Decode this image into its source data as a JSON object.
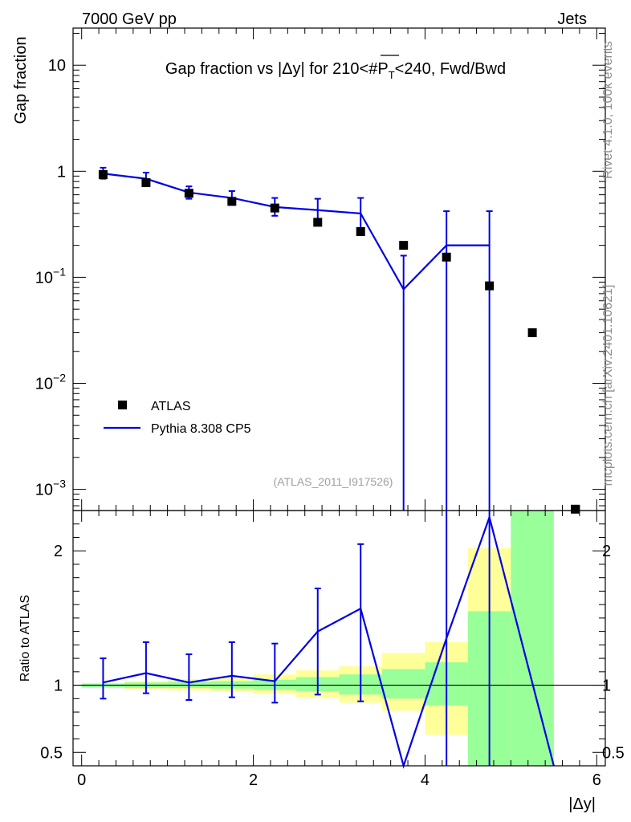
{
  "header": {
    "left": "7000 GeV pp",
    "right": "Jets"
  },
  "side_labels": {
    "rivet": "Rivet 4.1.0,  100k events",
    "mcplots": "mcplots.cern.ch [arXiv:2401.10621]"
  },
  "chart_data": {
    "type": "scatter",
    "title_parts": [
      "Gap fraction vs |",
      "Δ",
      "y| for 210<#",
      "P",
      "T",
      "<240, Fwd/Bwd"
    ],
    "analysis_label": "(ATLAS_2011_I917526)",
    "xlabel": "|Δy|",
    "ylabel_main": "Gap fraction",
    "ylabel_ratio": "Ratio to ATLAS",
    "xlim": [
      -0.1,
      6.1
    ],
    "ylim_main_log10": [
      -3.2,
      1.35
    ],
    "ylim_ratio": [
      0.4,
      2.3
    ],
    "x_ticks": [
      0,
      2,
      4,
      6
    ],
    "x_tick_labels": [
      "0",
      "2",
      "4",
      "6"
    ],
    "y_ticks_main": [
      {
        "base": "10",
        "exp": "",
        "log": 1
      },
      {
        "base": "1",
        "exp": "",
        "log": 0
      },
      {
        "base": "10",
        "exp": "−1",
        "log": -1
      },
      {
        "base": "10",
        "exp": "−2",
        "log": -2
      },
      {
        "base": "10",
        "exp": "−3",
        "log": -3
      }
    ],
    "y_ticks_ratio": [
      {
        "label": "0.5",
        "value": 0.5
      },
      {
        "label": "1",
        "value": 1
      },
      {
        "label": "2",
        "value": 2
      }
    ],
    "legend": {
      "placement": "lower-left",
      "data_label": "ATLAS",
      "mc_label": "Pythia 8.308 CP5"
    },
    "bins": [
      0,
      0.5,
      1,
      1.5,
      2,
      2.5,
      3,
      3.5,
      4,
      4.5,
      5,
      5.5
    ],
    "atlas": {
      "x": [
        0.25,
        0.75,
        1.25,
        1.75,
        2.25,
        2.75,
        3.25,
        3.75,
        4.25,
        4.75,
        5.25,
        5.75
      ],
      "y": [
        0.93,
        0.78,
        0.62,
        0.52,
        0.45,
        0.33,
        0.27,
        0.2,
        0.155,
        0.083,
        0.03,
        0.00065
      ]
    },
    "pythia": {
      "x": [
        0.25,
        0.75,
        1.25,
        1.75,
        2.25,
        2.75,
        3.25,
        3.75,
        4.25,
        4.75
      ],
      "y": [
        0.95,
        0.85,
        0.63,
        0.56,
        0.46,
        0.43,
        0.4,
        0.077,
        0.2,
        0.2
      ],
      "err_up": [
        1.08,
        0.97,
        0.72,
        0.65,
        0.56,
        0.55,
        0.56,
        0.16,
        0.42,
        0.42
      ],
      "err_down": [
        0.85,
        0.75,
        0.55,
        0.48,
        0.38,
        0.32,
        0.25,
        0.0001,
        0.0001,
        0.0001
      ]
    },
    "ratio": {
      "x": [
        0.25,
        0.75,
        1.25,
        1.75,
        2.25,
        2.75,
        3.25,
        3.75,
        4.25,
        4.75,
        5.5
      ],
      "y": [
        1.02,
        1.09,
        1.02,
        1.07,
        1.03,
        1.4,
        1.57,
        0.38,
        1.35,
        2.25,
        0.38
      ],
      "err_up": [
        1.2,
        1.32,
        1.23,
        1.32,
        1.31,
        1.72,
        2.05,
        null,
        null,
        null,
        null
      ],
      "err_down": [
        0.9,
        0.94,
        0.89,
        0.91,
        0.87,
        0.93,
        0.88,
        null,
        null,
        null,
        null
      ]
    },
    "bands": {
      "green_lo": [
        0.985,
        0.98,
        0.98,
        0.975,
        0.965,
        0.955,
        0.93,
        0.9,
        0.85,
        0.38,
        0.38
      ],
      "green_hi": [
        1.012,
        1.02,
        1.025,
        1.03,
        1.04,
        1.06,
        1.08,
        1.12,
        1.17,
        1.55,
        2.3
      ],
      "yellow_lo": [
        0.98,
        0.97,
        0.96,
        0.95,
        0.935,
        0.905,
        0.87,
        0.81,
        0.63,
        0.46,
        0.38
      ],
      "yellow_hi": [
        1.015,
        1.03,
        1.045,
        1.06,
        1.08,
        1.11,
        1.14,
        1.24,
        1.32,
        2.02,
        2.3
      ]
    }
  }
}
